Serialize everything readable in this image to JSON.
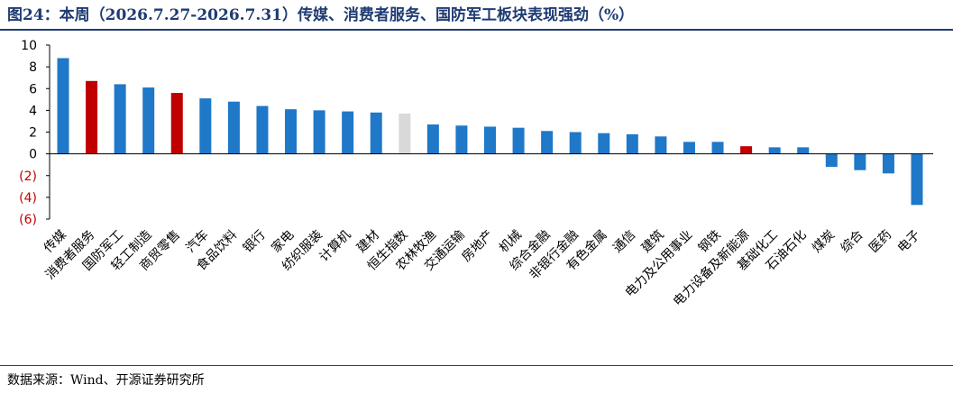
{
  "title": "图24：本周（2026.7.27-2026.7.31）传媒、消费者服务、国防军工板块表现强劲（%）",
  "source": "数据来源：Wind、开源证券研究所",
  "colors": {
    "default": "#1f78c8",
    "highlight": "#c00000",
    "index": "#d9d9d9",
    "negative_tick": "#c00000",
    "axis": "#000000",
    "title": "#1f3b73"
  },
  "chart_data": {
    "type": "bar",
    "title": "",
    "xlabel": "",
    "ylabel": "",
    "ylim": [
      -6,
      10
    ],
    "yticks": [
      10,
      8,
      6,
      4,
      2,
      0,
      -2,
      -4,
      -6
    ],
    "ytick_labels": [
      "10",
      "8",
      "6",
      "4",
      "2",
      "0",
      "(2)",
      "(4)",
      "(6)"
    ],
    "grid": false,
    "categories": [
      "传媒",
      "消费者服务",
      "国防军工",
      "轻工制造",
      "商贸零售",
      "汽车",
      "食品饮料",
      "银行",
      "家电",
      "纺织服装",
      "计算机",
      "建材",
      "恒生指数",
      "农林牧渔",
      "交通运输",
      "房地产",
      "机械",
      "综合金融",
      "非银行金融",
      "有色金属",
      "通信",
      "建筑",
      "电力及公用事业",
      "钢铁",
      "电力设备及新能源",
      "基础化工",
      "石油石化",
      "煤炭",
      "综合",
      "医药",
      "电子"
    ],
    "values": [
      8.8,
      6.7,
      6.4,
      6.1,
      5.6,
      5.1,
      4.8,
      4.4,
      4.1,
      4.0,
      3.9,
      3.8,
      3.7,
      2.7,
      2.6,
      2.5,
      2.4,
      2.1,
      2.0,
      1.9,
      1.8,
      1.6,
      1.1,
      1.1,
      0.7,
      0.6,
      0.6,
      -1.2,
      -1.5,
      -1.8,
      -4.7
    ],
    "bar_colors": [
      "default",
      "highlight",
      "default",
      "default",
      "highlight",
      "default",
      "default",
      "default",
      "default",
      "default",
      "default",
      "default",
      "index",
      "default",
      "default",
      "default",
      "default",
      "default",
      "default",
      "default",
      "default",
      "default",
      "default",
      "default",
      "highlight",
      "default",
      "default",
      "default",
      "default",
      "default",
      "default"
    ]
  }
}
